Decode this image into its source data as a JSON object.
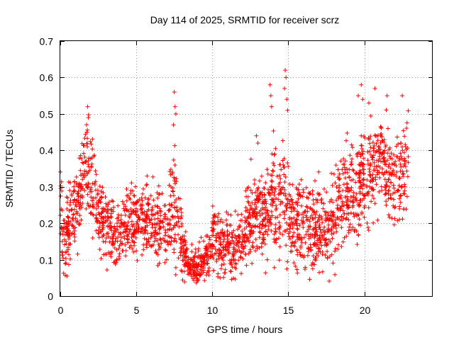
{
  "chart_data": {
    "type": "scatter",
    "title": "Day 114 of 2025, SRMTID for receiver scrz",
    "xlabel": "GPS time / hours",
    "ylabel": "SRMTID / TECUs",
    "xlim": [
      0,
      24.5
    ],
    "ylim": [
      0,
      0.7
    ],
    "xticks": [
      0,
      5,
      10,
      15,
      20
    ],
    "yticks": [
      0,
      0.1,
      0.2,
      0.3,
      0.4,
      0.5,
      0.6,
      0.7
    ],
    "grid": true,
    "marker": "+",
    "color": "#ff0000",
    "series": [
      {
        "name": "SRMTID",
        "profile": [
          [
            0.0,
            0.25,
            0.07
          ],
          [
            0.3,
            0.14,
            0.06
          ],
          [
            0.7,
            0.22,
            0.07
          ],
          [
            1.0,
            0.24,
            0.06
          ],
          [
            1.4,
            0.3,
            0.08
          ],
          [
            1.7,
            0.35,
            0.09
          ],
          [
            2.1,
            0.31,
            0.08
          ],
          [
            2.5,
            0.22,
            0.06
          ],
          [
            3.0,
            0.19,
            0.06
          ],
          [
            3.5,
            0.17,
            0.05
          ],
          [
            4.0,
            0.16,
            0.05
          ],
          [
            4.5,
            0.2,
            0.07
          ],
          [
            5.0,
            0.21,
            0.06
          ],
          [
            5.5,
            0.22,
            0.06
          ],
          [
            6.0,
            0.2,
            0.07
          ],
          [
            6.5,
            0.21,
            0.08
          ],
          [
            7.0,
            0.18,
            0.06
          ],
          [
            7.5,
            0.26,
            0.13
          ],
          [
            8.0,
            0.14,
            0.05
          ],
          [
            8.5,
            0.09,
            0.03
          ],
          [
            9.0,
            0.08,
            0.03
          ],
          [
            9.5,
            0.09,
            0.04
          ],
          [
            10.0,
            0.17,
            0.06
          ],
          [
            10.5,
            0.15,
            0.06
          ],
          [
            11.0,
            0.14,
            0.05
          ],
          [
            11.5,
            0.13,
            0.05
          ],
          [
            12.0,
            0.16,
            0.06
          ],
          [
            12.5,
            0.22,
            0.07
          ],
          [
            13.0,
            0.23,
            0.07
          ],
          [
            13.5,
            0.22,
            0.08
          ],
          [
            14.0,
            0.28,
            0.11
          ],
          [
            14.5,
            0.26,
            0.11
          ],
          [
            15.0,
            0.22,
            0.09
          ],
          [
            15.5,
            0.21,
            0.08
          ],
          [
            16.0,
            0.2,
            0.08
          ],
          [
            16.5,
            0.19,
            0.08
          ],
          [
            17.0,
            0.18,
            0.07
          ],
          [
            17.5,
            0.19,
            0.07
          ],
          [
            18.0,
            0.21,
            0.08
          ],
          [
            18.5,
            0.26,
            0.09
          ],
          [
            19.0,
            0.28,
            0.09
          ],
          [
            19.5,
            0.3,
            0.09
          ],
          [
            20.0,
            0.32,
            0.09
          ],
          [
            20.5,
            0.36,
            0.09
          ],
          [
            21.0,
            0.36,
            0.09
          ],
          [
            21.5,
            0.33,
            0.09
          ],
          [
            22.0,
            0.3,
            0.09
          ],
          [
            22.5,
            0.34,
            0.09
          ],
          [
            22.8,
            0.38,
            0.08
          ]
        ],
        "spikes": [
          [
            1.8,
            0.52
          ],
          [
            1.85,
            0.49
          ],
          [
            1.75,
            0.45
          ],
          [
            7.5,
            0.56
          ],
          [
            7.55,
            0.52
          ],
          [
            7.6,
            0.5
          ],
          [
            7.45,
            0.47
          ],
          [
            12.9,
            0.44
          ],
          [
            13.0,
            0.42
          ],
          [
            13.8,
            0.58
          ],
          [
            13.85,
            0.55
          ],
          [
            13.9,
            0.52
          ],
          [
            14.8,
            0.62
          ],
          [
            14.85,
            0.6
          ],
          [
            14.75,
            0.57
          ],
          [
            14.9,
            0.54
          ],
          [
            14.95,
            0.51
          ],
          [
            19.6,
            0.55
          ],
          [
            19.9,
            0.54
          ],
          [
            20.3,
            0.53
          ],
          [
            20.7,
            0.57
          ],
          [
            21.5,
            0.55
          ],
          [
            22.5,
            0.55
          ],
          [
            19.8,
            0.58
          ]
        ],
        "n_points": 2400,
        "x_range": [
          0,
          22.9
        ]
      }
    ]
  }
}
